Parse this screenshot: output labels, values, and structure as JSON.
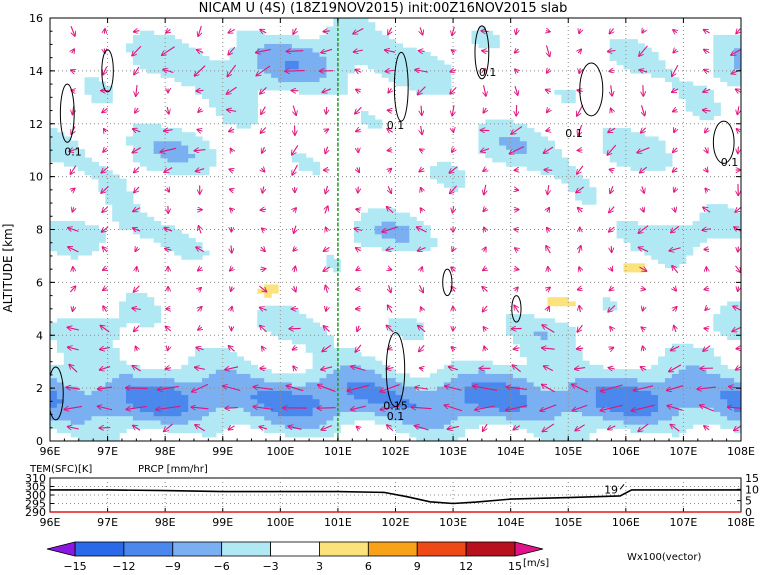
{
  "title": "NICAM U (4S) (18Z19NOV2015) init:00Z16NOV2015 slab",
  "colors": {
    "vector": "#e0147c",
    "divider": "#1a9e1a",
    "contour": "#000000",
    "temp_line": "#000000",
    "prcp_line": "#e01818",
    "prcp_label": "#e01818",
    "vector_label": "#c0148c"
  },
  "chart_data": [
    {
      "type": "heatmap",
      "title": "NICAM U (4S) (18Z19NOV2015) init:00Z16NOV2015 slab",
      "xlabel": "",
      "ylabel": "ALTITUDE [km]",
      "x_ticks": [
        "96E",
        "97E",
        "98E",
        "99E",
        "100E",
        "101E",
        "102E",
        "103E",
        "104E",
        "105E",
        "106E",
        "107E",
        "108E"
      ],
      "x_values": [
        96,
        97,
        98,
        99,
        100,
        101,
        102,
        103,
        104,
        105,
        106,
        107,
        108
      ],
      "xlim": [
        96,
        108
      ],
      "y_ticks": [
        "0",
        "2",
        "4",
        "6",
        "8",
        "10",
        "12",
        "14",
        "16"
      ],
      "y_values": [
        0,
        2,
        4,
        6,
        8,
        10,
        12,
        14,
        16
      ],
      "ylim": [
        0,
        16
      ],
      "grid": true,
      "divider_x": 101,
      "contour_labels": [
        {
          "text": "0.1",
          "x": 96.4,
          "y": 10.8
        },
        {
          "text": "0.1",
          "x": 102.0,
          "y": 11.8
        },
        {
          "text": "0.1",
          "x": 103.6,
          "y": 13.8
        },
        {
          "text": "0.1",
          "x": 105.1,
          "y": 11.5
        },
        {
          "text": "0.1",
          "x": 107.8,
          "y": 10.4
        },
        {
          "text": "0.15",
          "x": 102.0,
          "y": 1.2
        },
        {
          "text": "0.1",
          "x": 102.0,
          "y": 0.8
        }
      ],
      "shading": {
        "levels": [
          -15,
          -12,
          -9,
          -6,
          -3,
          3,
          6,
          9,
          12,
          15
        ],
        "colors": [
          "#8a18e0",
          "#2a6ae8",
          "#4a88ee",
          "#7ab0f2",
          "#b0e8f4",
          "#ffffff",
          "#fbe27a",
          "#f8a218",
          "#ee4a18",
          "#b8101c",
          "#e01488"
        ],
        "unit": "[m/s]"
      },
      "vector_label": "Wx100(vector)"
    },
    {
      "type": "line",
      "title": "",
      "x_ticks": [
        "96E",
        "97E",
        "98E",
        "99E",
        "100E",
        "101E",
        "102E",
        "103E",
        "104E",
        "105E",
        "106E",
        "107E",
        "108E"
      ],
      "xlim": [
        96,
        108
      ],
      "series": [
        {
          "name": "TEM(SFC)[K]",
          "axis": "left",
          "ylim": [
            290,
            310
          ],
          "y_ticks": [
            "290",
            "295",
            "300",
            "305",
            "310"
          ],
          "x": [
            96,
            97,
            98,
            99,
            100,
            101,
            101.8,
            102.2,
            102.6,
            103,
            103.4,
            104,
            105,
            105.9,
            106.1,
            107,
            108
          ],
          "y": [
            303,
            303,
            302.6,
            302,
            302,
            302,
            301.5,
            299,
            296,
            295,
            295.8,
            297.6,
            298.5,
            299.5,
            303,
            303,
            303
          ]
        },
        {
          "name": "PRCP [mm/hr]",
          "axis": "right",
          "ylim": [
            0,
            15
          ],
          "y_ticks": [
            "0",
            "5",
            "10",
            "15"
          ],
          "x": [
            96,
            97,
            98,
            99,
            100,
            101,
            102,
            103,
            104,
            105,
            106,
            107,
            108
          ],
          "y": [
            0,
            0,
            0,
            0,
            0,
            0,
            0,
            0,
            0,
            0,
            0,
            0,
            0
          ]
        }
      ],
      "annotations": [
        {
          "text": "19",
          "x": 105.9,
          "y": 10
        }
      ],
      "grid": true
    }
  ]
}
